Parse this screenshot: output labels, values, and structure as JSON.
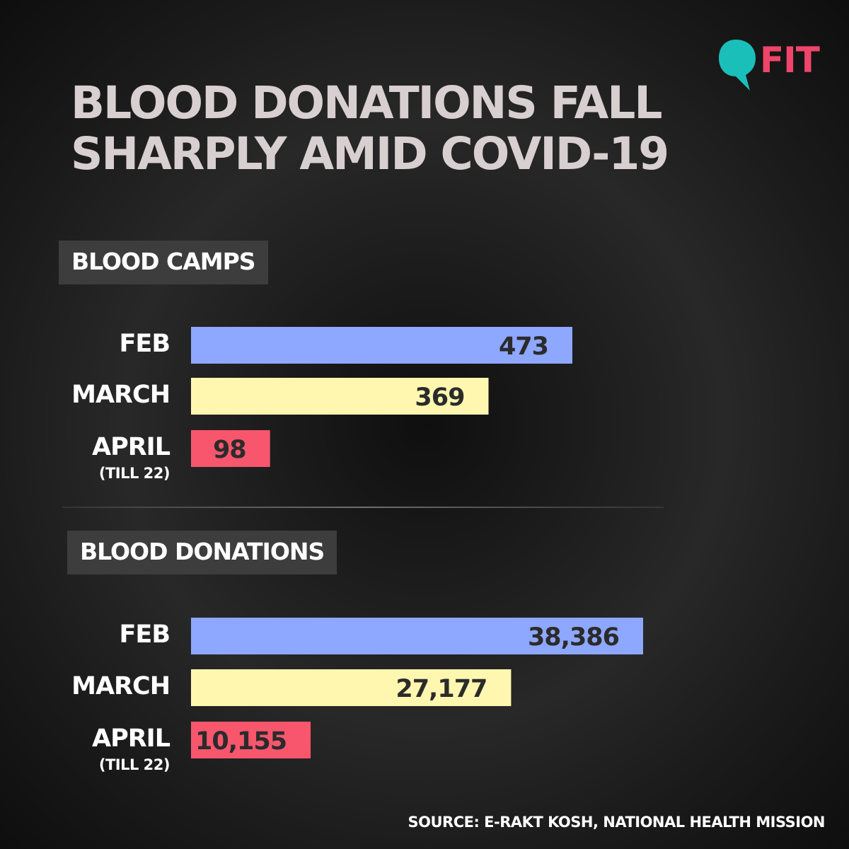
{
  "title": {
    "line1": "BLOOD DONATIONS FALL",
    "line2": "SHARPLY AMID COVID-19"
  },
  "logo": {
    "text": "FIT",
    "icon": "speech-bubble-q-icon",
    "icon_color": "#1bbfb9",
    "text_color": "#f0456a"
  },
  "source": "SOURCE: E-RAKT KOSH, NATIONAL HEALTH MISSION",
  "colors": {
    "feb": "#8ea7ff",
    "march": "#fff7b0",
    "april": "#f7566d",
    "label_box": "#3d3d3d"
  },
  "chart_data": [
    {
      "type": "bar",
      "orientation": "horizontal",
      "title": "BLOOD CAMPS",
      "categories": [
        "FEB",
        "MARCH",
        "APRIL"
      ],
      "category_notes": [
        "",
        "",
        "(TILL 22)"
      ],
      "values": [
        473,
        369,
        98
      ],
      "value_labels": [
        "473",
        "369",
        "98"
      ],
      "xlim": [
        0,
        473
      ],
      "grid": false,
      "legend": "none"
    },
    {
      "type": "bar",
      "orientation": "horizontal",
      "title": "BLOOD DONATIONS",
      "categories": [
        "FEB",
        "MARCH",
        "APRIL"
      ],
      "category_notes": [
        "",
        "",
        "(TILL 22)"
      ],
      "values": [
        38386,
        27177,
        10155
      ],
      "value_labels": [
        "38,386",
        "27,177",
        "10,155"
      ],
      "xlim": [
        0,
        38386
      ],
      "grid": false,
      "legend": "none"
    }
  ]
}
